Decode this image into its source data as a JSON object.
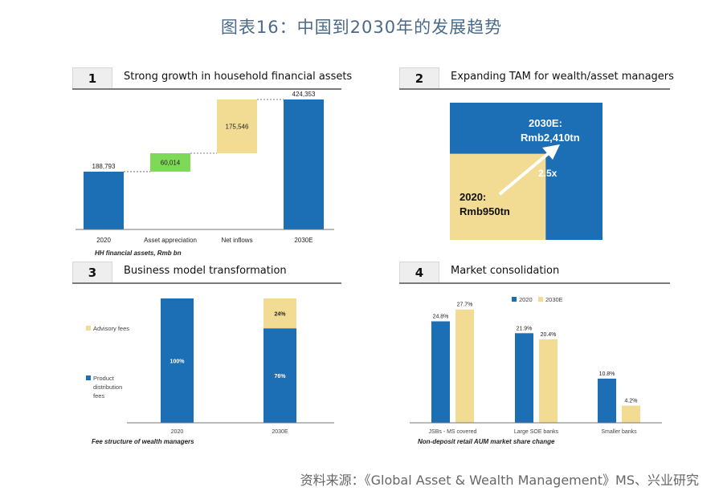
{
  "title": "图表16：中国到2030年的发展趋势",
  "source": "资料来源：《Global Asset & Wealth Management》MS、兴业研究",
  "chart_data": [
    {
      "panel_number": "1",
      "panel_title": "Strong growth in household financial assets",
      "type": "bar",
      "subtype": "waterfall",
      "categories": [
        "2020",
        "Asset appreciation",
        "Net inflows",
        "2030E"
      ],
      "values": [
        188793,
        60014,
        175546,
        424353
      ],
      "value_labels": [
        "188,793",
        "60,014",
        "175,546",
        "424,353"
      ],
      "kinds": [
        "total",
        "increase",
        "increase",
        "total"
      ],
      "ylim": [
        0,
        440000
      ],
      "caption": "HH financial assets, Rmb bn",
      "colors": {
        "total": "#1c6fb5",
        "appreciation": "#7ed957",
        "inflows": "#f2dc94"
      }
    },
    {
      "panel_number": "2",
      "panel_title": "Expanding TAM for wealth/asset managers",
      "type": "area",
      "subtype": "nested-square",
      "values": [
        950,
        2410
      ],
      "unit": "Rmb tn",
      "small_label_1": "2020:",
      "small_label_2": "Rmb950tn",
      "large_label_1": "2030E:",
      "large_label_2": "Rmb2,410tn",
      "growth_label": "2.5x",
      "colors": {
        "large": "#1c6fb5",
        "small": "#f2dc94"
      }
    },
    {
      "panel_number": "3",
      "panel_title": "Business model transformation",
      "type": "bar",
      "subtype": "stacked-percent",
      "categories": [
        "2020",
        "2030E"
      ],
      "series": [
        {
          "name": "Product distribution fees",
          "name_lines": [
            "Product",
            "distribution",
            "fees"
          ],
          "values": [
            100,
            76
          ],
          "labels": [
            "100%",
            "76%"
          ],
          "color": "#1c6fb5"
        },
        {
          "name": "Advisory fees",
          "values": [
            0,
            24
          ],
          "labels": [
            "",
            "24%"
          ],
          "color": "#f2dc94"
        }
      ],
      "ylim": [
        0,
        100
      ],
      "caption": "Fee structure of wealth managers"
    },
    {
      "panel_number": "4",
      "panel_title": "Market consolidation",
      "type": "bar",
      "subtype": "grouped",
      "categories": [
        "JSBs - MS covered",
        "Large SOE banks",
        "Smaller banks"
      ],
      "series": [
        {
          "name": "2020",
          "values": [
            24.8,
            21.9,
            10.8
          ],
          "labels": [
            "24.8%",
            "21.9%",
            "10.8%"
          ],
          "color": "#1c6fb5"
        },
        {
          "name": "2030E",
          "values": [
            27.7,
            20.4,
            4.2
          ],
          "labels": [
            "27.7%",
            "20.4%",
            "4.2%"
          ],
          "color": "#f2dc94"
        }
      ],
      "ylim": [
        0,
        30
      ],
      "caption": "Non-deposit retail AUM market share change"
    }
  ]
}
